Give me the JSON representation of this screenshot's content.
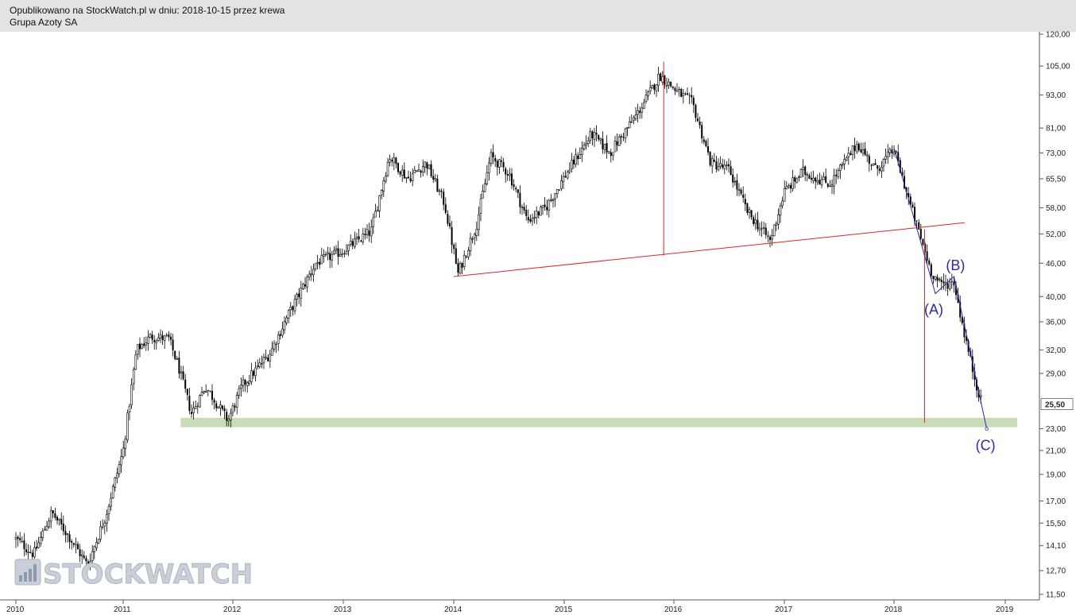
{
  "header": {
    "published": "Opublikowano na StockWatch.pl w dniu: 2018-10-15 przez krewa",
    "instrument": "Grupa Azoty SA"
  },
  "watermark": {
    "text": "STOCKWATCH",
    "icon": "bar-chart-icon"
  },
  "colors": {
    "candle": "#000000",
    "neckline": "#e02424",
    "wave": "#2a2aa8",
    "support_band": "#c8dcb8",
    "header_bg": "#e3e3e3"
  },
  "chart_data": {
    "type": "candlestick",
    "y_scale": "log",
    "ylim": [
      11.5,
      120
    ],
    "xlim": [
      "2010-01",
      "2019-02"
    ],
    "x_ticks": [
      "2010",
      "2011",
      "2012",
      "2013",
      "2014",
      "2015",
      "2016",
      "2017",
      "2018",
      "2019"
    ],
    "y_ticks": [
      "120,00",
      "105,00",
      "93,00",
      "81,00",
      "73,00",
      "65,50",
      "58,00",
      "52,00",
      "46,00",
      "40,00",
      "36,00",
      "32,00",
      "29,00",
      "23,00",
      "21,00",
      "19,00",
      "17,00",
      "15,50",
      "14,10",
      "12,70",
      "11,50"
    ],
    "y_tick_values": [
      120,
      105,
      93,
      81,
      73,
      65.5,
      58,
      52,
      46,
      40,
      36,
      32,
      29,
      23,
      21,
      19,
      17,
      15.5,
      14.1,
      12.7,
      11.5
    ],
    "last_price": {
      "label": "25,50",
      "value": 25.5
    },
    "price_path": [
      [
        "2010-01-01",
        14.5
      ],
      [
        "2010-03-01",
        13.6
      ],
      [
        "2010-05-01",
        16.2
      ],
      [
        "2010-07-01",
        14.6
      ],
      [
        "2010-09-01",
        13.0
      ],
      [
        "2010-11-01",
        15.9
      ],
      [
        "2011-01-01",
        21.0
      ],
      [
        "2011-02-15",
        32.0
      ],
      [
        "2011-04-01",
        33.8
      ],
      [
        "2011-06-01",
        33.5
      ],
      [
        "2011-07-01",
        30.0
      ],
      [
        "2011-08-15",
        24.5
      ],
      [
        "2011-10-01",
        27.5
      ],
      [
        "2011-12-15",
        23.8
      ],
      [
        "2012-02-01",
        27.5
      ],
      [
        "2012-05-01",
        31.5
      ],
      [
        "2012-07-01",
        37.0
      ],
      [
        "2012-10-01",
        46.0
      ],
      [
        "2013-01-01",
        48.5
      ],
      [
        "2013-04-01",
        52.5
      ],
      [
        "2013-06-01",
        72.0
      ],
      [
        "2013-08-01",
        65.5
      ],
      [
        "2013-10-01",
        70.0
      ],
      [
        "2013-12-01",
        59.0
      ],
      [
        "2014-01-15",
        44.0
      ],
      [
        "2014-03-15",
        54.0
      ],
      [
        "2014-05-01",
        72.0
      ],
      [
        "2014-07-01",
        67.0
      ],
      [
        "2014-09-01",
        55.0
      ],
      [
        "2014-11-01",
        58.0
      ],
      [
        "2015-01-01",
        66.0
      ],
      [
        "2015-04-01",
        79.0
      ],
      [
        "2015-06-01",
        73.0
      ],
      [
        "2015-09-01",
        86.0
      ],
      [
        "2015-11-15",
        101.0
      ],
      [
        "2016-01-15",
        94.0
      ],
      [
        "2016-03-01",
        90.0
      ],
      [
        "2016-05-01",
        70.0
      ],
      [
        "2016-07-01",
        68.0
      ],
      [
        "2016-09-01",
        57.0
      ],
      [
        "2016-11-15",
        50.5
      ],
      [
        "2017-01-01",
        62.0
      ],
      [
        "2017-03-01",
        67.5
      ],
      [
        "2017-06-01",
        64.0
      ],
      [
        "2017-09-01",
        76.0
      ],
      [
        "2017-11-01",
        68.0
      ],
      [
        "2018-01-01",
        74.0
      ],
      [
        "2018-03-01",
        57.0
      ],
      [
        "2018-05-01",
        44.5
      ],
      [
        "2018-06-01",
        42.0
      ],
      [
        "2018-07-15",
        42.5
      ],
      [
        "2018-08-15",
        35.0
      ],
      [
        "2018-09-15",
        29.5
      ],
      [
        "2018-10-15",
        25.5
      ]
    ],
    "annotations": {
      "neckline": {
        "start": [
          "2014-01-01",
          43.5
        ],
        "end": [
          "2018-08-20",
          54.5
        ]
      },
      "head_projection": {
        "x": "2015-11-28",
        "from": 47.5,
        "to": 107.0
      },
      "target_projection": {
        "x": "2018-04-10",
        "from": 53.0,
        "to": 23.6
      },
      "support_band": {
        "start": "2011-07-10",
        "end": "2019-02-20",
        "low": 23.3,
        "high": 24.0
      },
      "wave_line": [
        [
          "2018-01-01",
          74.5
        ],
        [
          "2018-05-15",
          40.5
        ],
        [
          "2018-07-15",
          43.5
        ],
        [
          "2018-11-01",
          23.0
        ]
      ],
      "wave_labels": [
        {
          "text": "(A)",
          "x": "2018-05-15",
          "y": 40.5
        },
        {
          "text": "(B)",
          "x": "2018-07-15",
          "y": 43.5
        },
        {
          "text": "(C)",
          "x": "2018-11-01",
          "y": 23.0
        }
      ]
    }
  }
}
